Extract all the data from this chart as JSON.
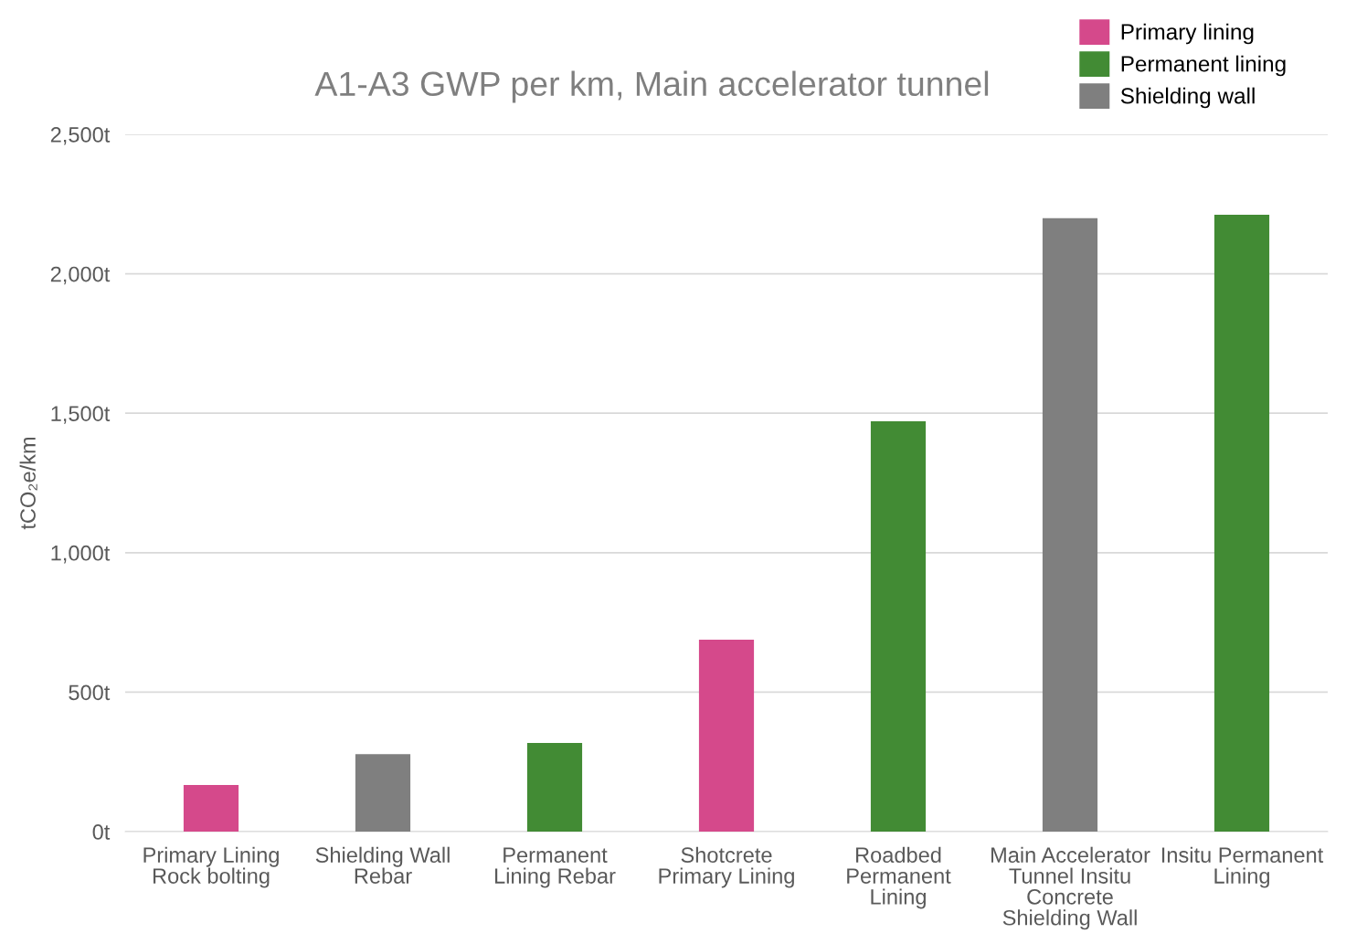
{
  "chart_data": {
    "type": "bar",
    "title": "A1-A3 GWP per km, Main accelerator tunnel",
    "ylabel": "tCO₂e/km",
    "categories": [
      "Primary Lining\nRock bolting",
      "Shielding Wall\nRebar",
      "Permanent\nLining Rebar",
      "Shotcrete\nPrimary Lining",
      "Roadbed\nPermanent\nLining",
      "Main Accelerator\nTunnel Insitu\nConcrete\nShielding Wall",
      "Insitu Permanent\nLining"
    ],
    "series": [
      {
        "name": "Primary lining",
        "color": "#d5498b",
        "values": [
          167,
          null,
          null,
          688,
          null,
          null,
          null
        ]
      },
      {
        "name": "Permanent lining",
        "color": "#428b34",
        "values": [
          null,
          null,
          318,
          null,
          1471,
          null,
          2212
        ]
      },
      {
        "name": "Shielding wall",
        "color": "#7f7f7f",
        "values": [
          null,
          278,
          null,
          null,
          null,
          2199,
          null
        ]
      }
    ],
    "ylim": [
      0,
      2500
    ],
    "yticks": [
      {
        "value": 0,
        "label": "0t"
      },
      {
        "value": 500,
        "label": "500t"
      },
      {
        "value": 1000,
        "label": "1,000t"
      },
      {
        "value": 1500,
        "label": "1,500t"
      },
      {
        "value": 2000,
        "label": "2,000t"
      },
      {
        "value": 2500,
        "label": "2,500t"
      }
    ],
    "grid": "y",
    "legend": "top right"
  }
}
